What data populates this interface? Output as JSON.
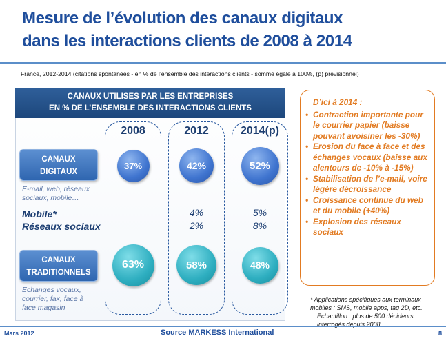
{
  "title_line1": "Mesure de l’évolution des canaux digitaux",
  "title_line2": "dans les interactions clients de 2008 à 2014",
  "subtitle": "France, 2012-2014 (citations spontanées - en % de l’ensemble des interactions clients - somme égale à 100%, (p) prévisionnel)",
  "panel_header_line1": "CANAUX UTILISES PAR LES ENTREPRISES",
  "panel_header_line2": "EN % DE L’ENSEMBLE DES INTERACTIONS CLIENTS",
  "colors": {
    "title": "#1f4e9c",
    "digital": "#3f74cf",
    "traditional": "#2eaec0",
    "accent": "#e27b22"
  },
  "chart_data": {
    "type": "table",
    "title": "CANAUX UTILISES PAR LES ENTREPRISES EN % DE L’ENSEMBLE DES INTERACTIONS CLIENTS",
    "categories": [
      "2008",
      "2012",
      "2014(p)"
    ],
    "series": [
      {
        "name": "CANAUX DIGITAUX",
        "values": [
          37,
          42,
          52
        ],
        "labels": [
          "37%",
          "42%",
          "52%"
        ],
        "note": "E-mail, web, réseaux sociaux, mobile…"
      },
      {
        "name": "Mobile*",
        "values": [
          null,
          4,
          5
        ],
        "labels": [
          "",
          "4%",
          "5%"
        ]
      },
      {
        "name": "Réseaux sociaux",
        "values": [
          null,
          2,
          8
        ],
        "labels": [
          "",
          "2%",
          "8%"
        ]
      },
      {
        "name": "CANAUX TRADITIONNELS",
        "values": [
          63,
          58,
          48
        ],
        "labels": [
          "63%",
          "58%",
          "48%"
        ],
        "note": "Echanges vocaux, courrier, fax, face à face magasin"
      }
    ]
  },
  "row_labels": {
    "digital_line1": "CANAUX",
    "digital_line2": "DIGITAUX",
    "digital_note": "E-mail, web, réseaux sociaux, mobile…",
    "mobile": "Mobile*",
    "social": "Réseaux sociaux",
    "trad_line1": "CANAUX",
    "trad_line2": "TRADITIONNELS",
    "trad_note": "Echanges vocaux, courrier, fax, face à face magasin"
  },
  "side": {
    "heading": "D’ici à 2014 :",
    "items": [
      "Contraction importante pour le courrier papier (baisse pouvant avoisiner les -30%)",
      "Erosion du face à face et des échanges vocaux (baisse aux alentours de -10% à -15%)",
      "Stabilisation de l’e-mail, voire légère décroissance",
      "Croissance continue du web et du mobile (+40%)",
      "Explosion des réseaux sociaux"
    ]
  },
  "foot_note_line1": "* Applications spécifiques aux terminaux mobiles : SMS, mobile apps, tag 2D, etc.",
  "foot_note_line2": "Echantillon : plus de 500 décideurs interrogés depuis 2008",
  "footer": {
    "date": "Mars 2012",
    "source": "Source MARKESS International",
    "page": "8"
  }
}
